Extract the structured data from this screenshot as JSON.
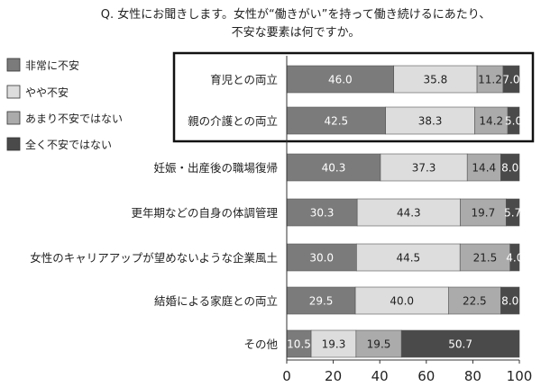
{
  "chart_data": {
    "type": "bar",
    "orientation": "horizontal",
    "stacked": true,
    "title": [
      "Q. 女性にお聞きします。女性が“働きがい”を持って働き続けるにあたり、",
      "不安な要素は何ですか。"
    ],
    "categories": [
      "育児との両立",
      "親の介護との両立",
      "妊娠・出産後の職場復帰",
      "更年期などの自身の体調管理",
      "女性のキャリアアップが望めないような企業風土",
      "結婚による家庭との両立",
      "その他"
    ],
    "series": [
      {
        "name": "非常に不安",
        "color": "#7b7b7b",
        "values": [
          46.0,
          42.5,
          40.3,
          30.3,
          30.0,
          29.5,
          10.5
        ]
      },
      {
        "name": "やや不安",
        "color": "#dddddd",
        "values": [
          35.8,
          38.3,
          37.3,
          44.3,
          44.5,
          40.0,
          19.3
        ]
      },
      {
        "name": "あまり不安ではない",
        "color": "#ababab",
        "values": [
          11.2,
          14.2,
          14.4,
          19.7,
          21.5,
          22.5,
          19.5
        ]
      },
      {
        "name": "全く不安ではない",
        "color": "#4a4a4a",
        "values": [
          7.0,
          5.0,
          8.0,
          5.7,
          4.0,
          8.0,
          50.7
        ]
      }
    ],
    "value_labels": [
      [
        "46.0",
        "35.8",
        "11.2",
        "7.0"
      ],
      [
        "42.5",
        "38.3",
        "14.2",
        "5.0"
      ],
      [
        "40.3",
        "37.3",
        "14.4",
        "8.0"
      ],
      [
        "30.3",
        "44.3",
        "19.7",
        "5.7"
      ],
      [
        "30.0",
        "44.5",
        "21.5",
        "4.0"
      ],
      [
        "29.5",
        "40.0",
        "22.5",
        "8.0"
      ],
      [
        "10.5",
        "19.3",
        "19.5",
        "50.7"
      ]
    ],
    "xlim": [
      0,
      100
    ],
    "xticks": [
      0,
      20,
      40,
      60,
      80,
      100
    ],
    "xtick_labels": [
      "0",
      "20",
      "40",
      "60",
      "80",
      "100"
    ],
    "legend_position": "top-left",
    "highlight_categories": [
      0,
      1
    ],
    "grid": false
  }
}
